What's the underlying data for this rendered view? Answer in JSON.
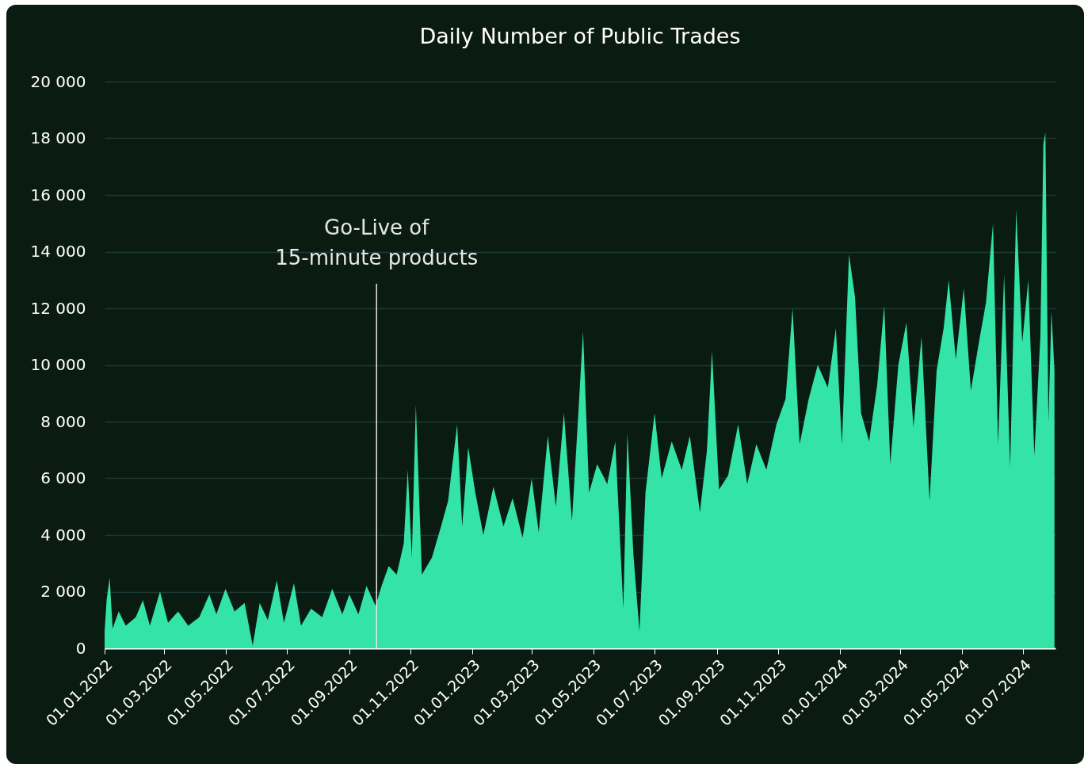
{
  "chart_data": {
    "type": "area",
    "title": "Daily Number of Public Trades",
    "x": [
      "2022-01-01",
      "2022-01-03",
      "2022-01-06",
      "2022-01-09",
      "2022-01-15",
      "2022-01-22",
      "2022-02-01",
      "2022-02-08",
      "2022-02-15",
      "2022-02-25",
      "2022-03-05",
      "2022-03-15",
      "2022-03-25",
      "2022-04-05",
      "2022-04-15",
      "2022-04-22",
      "2022-05-01",
      "2022-05-10",
      "2022-05-20",
      "2022-05-28",
      "2022-06-04",
      "2022-06-12",
      "2022-06-21",
      "2022-06-28",
      "2022-07-08",
      "2022-07-15",
      "2022-07-25",
      "2022-08-05",
      "2022-08-15",
      "2022-08-25",
      "2022-09-01",
      "2022-09-10",
      "2022-09-18",
      "2022-09-27",
      "2022-10-03",
      "2022-10-10",
      "2022-10-18",
      "2022-10-25",
      "2022-10-29",
      "2022-11-02",
      "2022-11-06",
      "2022-11-12",
      "2022-11-22",
      "2022-12-01",
      "2022-12-08",
      "2022-12-17",
      "2022-12-22",
      "2022-12-28",
      "2023-01-04",
      "2023-01-12",
      "2023-01-22",
      "2023-02-01",
      "2023-02-10",
      "2023-02-20",
      "2023-03-01",
      "2023-03-08",
      "2023-03-17",
      "2023-03-25",
      "2023-04-02",
      "2023-04-10",
      "2023-04-16",
      "2023-04-21",
      "2023-04-27",
      "2023-05-05",
      "2023-05-15",
      "2023-05-23",
      "2023-05-31",
      "2023-06-04",
      "2023-06-10",
      "2023-06-16",
      "2023-06-22",
      "2023-07-01",
      "2023-07-08",
      "2023-07-18",
      "2023-07-28",
      "2023-08-05",
      "2023-08-15",
      "2023-08-22",
      "2023-08-27",
      "2023-09-03",
      "2023-09-12",
      "2023-09-22",
      "2023-10-01",
      "2023-10-10",
      "2023-10-20",
      "2023-10-30",
      "2023-11-08",
      "2023-11-15",
      "2023-11-22",
      "2023-12-01",
      "2023-12-10",
      "2023-12-20",
      "2023-12-28",
      "2024-01-03",
      "2024-01-10",
      "2024-01-16",
      "2024-01-22",
      "2024-01-30",
      "2024-02-07",
      "2024-02-14",
      "2024-02-20",
      "2024-02-28",
      "2024-03-07",
      "2024-03-14",
      "2024-03-22",
      "2024-03-30",
      "2024-04-06",
      "2024-04-13",
      "2024-04-18",
      "2024-04-25",
      "2024-05-03",
      "2024-05-10",
      "2024-05-18",
      "2024-05-25",
      "2024-06-01",
      "2024-06-06",
      "2024-06-12",
      "2024-06-18",
      "2024-06-24",
      "2024-06-30",
      "2024-07-06",
      "2024-07-12",
      "2024-07-18",
      "2024-07-21",
      "2024-07-23",
      "2024-07-26",
      "2024-07-29",
      "2024-08-01"
    ],
    "series": [
      {
        "color": "#33e3a8",
        "values": [
          600,
          1700,
          2500,
          700,
          1300,
          800,
          1100,
          1700,
          800,
          2000,
          900,
          1300,
          800,
          1100,
          1900,
          1200,
          2100,
          1300,
          1600,
          100,
          1600,
          1000,
          2400,
          900,
          2300,
          800,
          1400,
          1100,
          2100,
          1200,
          1900,
          1200,
          2200,
          1500,
          2200,
          2900,
          2600,
          3700,
          6300,
          3200,
          8600,
          2600,
          3200,
          4300,
          5200,
          7900,
          4300,
          7100,
          5500,
          4000,
          5700,
          4300,
          5300,
          3900,
          6000,
          4100,
          7500,
          5000,
          8300,
          4500,
          8100,
          11200,
          5500,
          6500,
          5800,
          7300,
          1400,
          7600,
          3300,
          600,
          5500,
          8300,
          6000,
          7300,
          6300,
          7500,
          4800,
          7000,
          10500,
          5600,
          6100,
          7900,
          5800,
          7200,
          6300,
          7900,
          8800,
          12000,
          7200,
          8800,
          10000,
          9200,
          11300,
          7200,
          13900,
          12400,
          8300,
          7300,
          9300,
          12100,
          6500,
          10000,
          11500,
          7800,
          11000,
          5200,
          9800,
          11300,
          13000,
          10200,
          12700,
          9100,
          10800,
          12200,
          15000,
          7200,
          13200,
          6400,
          15500,
          10800,
          13000,
          6800,
          11000,
          17800,
          18200,
          8000,
          11900,
          9800
        ]
      }
    ],
    "xlim": [
      "2022-01-01",
      "2024-08-02"
    ],
    "xticks": [
      {
        "value": "2022-01-01",
        "label": "01.01.2022"
      },
      {
        "value": "2022-03-01",
        "label": "01.03.2022"
      },
      {
        "value": "2022-05-01",
        "label": "01.05.2022"
      },
      {
        "value": "2022-07-01",
        "label": "01.07.2022"
      },
      {
        "value": "2022-09-01",
        "label": "01.09.2022"
      },
      {
        "value": "2022-11-01",
        "label": "01.11.2022"
      },
      {
        "value": "2023-01-01",
        "label": "01.01.2023"
      },
      {
        "value": "2023-03-01",
        "label": "01.03.2023"
      },
      {
        "value": "2023-05-01",
        "label": "01.05.2023"
      },
      {
        "value": "2023-07-01",
        "label": "01.07.2023"
      },
      {
        "value": "2023-09-01",
        "label": "01.09.2023"
      },
      {
        "value": "2023-11-01",
        "label": "01.11.2023"
      },
      {
        "value": "2024-01-01",
        "label": "01.01.2024"
      },
      {
        "value": "2024-03-01",
        "label": "01.03.2024"
      },
      {
        "value": "2024-05-01",
        "label": "01.05.2024"
      },
      {
        "value": "2024-07-01",
        "label": "01.07.2024"
      }
    ],
    "ylim": [
      0,
      20000
    ],
    "yticks": [
      0,
      {
        "value": 2000,
        "label": "2 000"
      },
      {
        "value": 4000,
        "label": "4 000"
      },
      {
        "value": 6000,
        "label": "6 000"
      },
      {
        "value": 8000,
        "label": "8 000"
      },
      {
        "value": 10000,
        "label": "10 000"
      },
      {
        "value": 12000,
        "label": "12 000"
      },
      {
        "value": 14000,
        "label": "14 000"
      },
      {
        "value": 16000,
        "label": "16 000"
      },
      {
        "value": 18000,
        "label": "18 000"
      },
      {
        "value": 20000,
        "label": "20 000"
      }
    ],
    "grid": "y",
    "ref_lines": [
      {
        "axis": "x",
        "value": "2022-09-28",
        "label": "Go-Live of\n15-minute products",
        "color": "#e6e6e6"
      }
    ]
  }
}
